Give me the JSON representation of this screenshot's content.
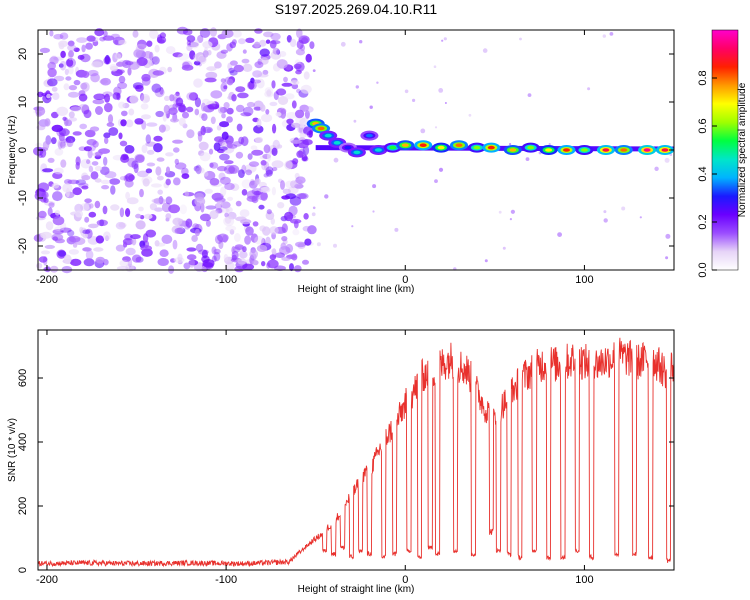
{
  "title": "S197.2025.269.04.10.R11",
  "chart_data": [
    {
      "type": "heatmap",
      "title": "S197.2025.269.04.10.R11",
      "xlabel": "Height of straight line (km)",
      "ylabel": "Frequency (Hz)",
      "xlim": [
        -205,
        150
      ],
      "ylim": [
        -25,
        25
      ],
      "xticks": [
        -200,
        -100,
        0,
        100
      ],
      "yticks": [
        -20,
        -10,
        0,
        10,
        20
      ],
      "colorbar": {
        "label": "Normalized spectral amplitude",
        "range": [
          0.0,
          1.0
        ],
        "ticks": [
          0.0,
          0.2,
          0.4,
          0.6,
          0.8
        ],
        "tick_labels": [
          "0.0",
          "0.2",
          "0.4",
          "0.6",
          "0.8"
        ],
        "colormap": [
          "#ffffff",
          "#e6d4f7",
          "#9b4dff",
          "#6a00ff",
          "#1a1aff",
          "#00b4ff",
          "#00e6c8",
          "#00ff40",
          "#a0ff00",
          "#ffff00",
          "#ff9900",
          "#ff2000",
          "#ff0066",
          "#ff00cc"
        ]
      },
      "noise_region": {
        "x_range": [
          -205,
          -52
        ],
        "amplitude_range": [
          0.0,
          0.2
        ]
      },
      "ridge": {
        "description": "spectral ridge near 0 Hz",
        "points": [
          {
            "x": -50,
            "f": 5.5,
            "a": 0.75
          },
          {
            "x": -47,
            "f": 4.5,
            "a": 0.8
          },
          {
            "x": -43,
            "f": 3.0,
            "a": 0.45
          },
          {
            "x": -38,
            "f": 1.5,
            "a": 0.45
          },
          {
            "x": -32,
            "f": 0.5,
            "a": 0.3
          },
          {
            "x": -27,
            "f": -0.5,
            "a": 0.45
          },
          {
            "x": -20,
            "f": 3.0,
            "a": 0.35
          },
          {
            "x": -15,
            "f": 0.0,
            "a": 0.45
          },
          {
            "x": -7,
            "f": 0.5,
            "a": 0.55
          },
          {
            "x": 0,
            "f": 1.0,
            "a": 0.75
          },
          {
            "x": 10,
            "f": 1.0,
            "a": 0.85
          },
          {
            "x": 20,
            "f": 0.5,
            "a": 0.7
          },
          {
            "x": 30,
            "f": 1.0,
            "a": 0.8
          },
          {
            "x": 40,
            "f": 0.5,
            "a": 0.6
          },
          {
            "x": 48,
            "f": 0.5,
            "a": 0.85
          },
          {
            "x": 60,
            "f": 0.0,
            "a": 0.75
          },
          {
            "x": 70,
            "f": 0.5,
            "a": 0.6
          },
          {
            "x": 80,
            "f": 0.0,
            "a": 0.7
          },
          {
            "x": 90,
            "f": 0.0,
            "a": 0.85
          },
          {
            "x": 100,
            "f": 0.0,
            "a": 0.6
          },
          {
            "x": 112,
            "f": 0.0,
            "a": 0.9
          },
          {
            "x": 122,
            "f": 0.0,
            "a": 0.8
          },
          {
            "x": 135,
            "f": 0.0,
            "a": 0.95
          },
          {
            "x": 145,
            "f": 0.0,
            "a": 0.9
          }
        ]
      }
    },
    {
      "type": "line",
      "xlabel": "Height of straight line (km)",
      "ylabel": "SNR (10 * v/v)",
      "xlim": [
        -205,
        150
      ],
      "ylim": [
        0,
        750
      ],
      "xticks": [
        -200,
        -100,
        0,
        100
      ],
      "yticks": [
        0,
        200,
        400,
        600
      ],
      "color": "#e8312d",
      "series": [
        {
          "name": "SNR",
          "points": [
            [
              -205,
              20
            ],
            [
              -180,
              22
            ],
            [
              -150,
              20
            ],
            [
              -120,
              22
            ],
            [
              -90,
              20
            ],
            [
              -65,
              25
            ],
            [
              -58,
              60
            ],
            [
              -52,
              90
            ],
            [
              -47,
              110
            ],
            [
              -42,
              140
            ],
            [
              -37,
              170
            ],
            [
              -33,
              210
            ],
            [
              -28,
              250
            ],
            [
              -23,
              300
            ],
            [
              -18,
              330
            ],
            [
              -14,
              380
            ],
            [
              -10,
              420
            ],
            [
              -5,
              460
            ],
            [
              0,
              520
            ],
            [
              5,
              560
            ],
            [
              10,
              610
            ],
            [
              15,
              620
            ],
            [
              20,
              640
            ],
            [
              25,
              660
            ],
            [
              30,
              640
            ],
            [
              35,
              620
            ],
            [
              40,
              560
            ],
            [
              45,
              500
            ],
            [
              50,
              480
            ],
            [
              55,
              520
            ],
            [
              60,
              560
            ],
            [
              65,
              600
            ],
            [
              70,
              620
            ],
            [
              75,
              640
            ],
            [
              80,
              650
            ],
            [
              85,
              640
            ],
            [
              90,
              650
            ],
            [
              95,
              660
            ],
            [
              100,
              650
            ],
            [
              105,
              640
            ],
            [
              110,
              650
            ],
            [
              115,
              660
            ],
            [
              120,
              670
            ],
            [
              125,
              660
            ],
            [
              130,
              650
            ],
            [
              135,
              660
            ],
            [
              140,
              650
            ],
            [
              145,
              620
            ],
            [
              150,
              640
            ]
          ]
        }
      ],
      "dropouts": [
        [
          -45,
          60
        ],
        [
          -40,
          50
        ],
        [
          -35,
          70
        ],
        [
          -30,
          40
        ],
        [
          -25,
          60
        ],
        [
          -20,
          50
        ],
        [
          -12,
          40
        ],
        [
          -6,
          50
        ],
        [
          2,
          60
        ],
        [
          8,
          40
        ],
        [
          14,
          70
        ],
        [
          18,
          50
        ],
        [
          28,
          60
        ],
        [
          38,
          50
        ],
        [
          48,
          120
        ],
        [
          52,
          60
        ],
        [
          58,
          50
        ],
        [
          64,
          40
        ],
        [
          72,
          60
        ],
        [
          80,
          40
        ],
        [
          88,
          40
        ],
        [
          96,
          60
        ],
        [
          104,
          40
        ],
        [
          118,
          50
        ],
        [
          128,
          50
        ],
        [
          137,
          40
        ],
        [
          147,
          30
        ]
      ]
    }
  ]
}
